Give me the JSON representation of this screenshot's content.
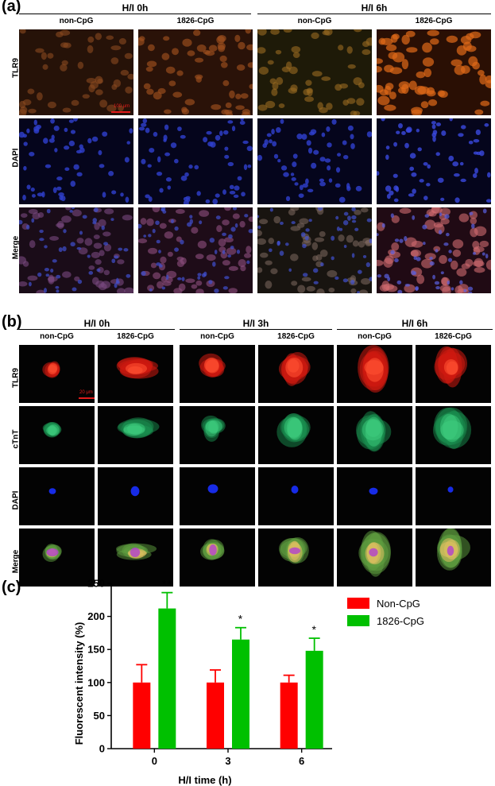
{
  "panel_a": {
    "letter": "(a)",
    "groups": [
      {
        "title": "H/I  0h"
      },
      {
        "title": "H/I  6h"
      }
    ],
    "columns": [
      "non-CpG",
      "1826-CpG",
      "non-CpG",
      "1826-CpG"
    ],
    "rows": [
      "TLR9",
      "DAPI",
      "Merge"
    ],
    "scale_bar": "100 μm"
  },
  "panel_b": {
    "letter": "(b)",
    "groups": [
      {
        "title": "H/I  0h"
      },
      {
        "title": "H/I  3h"
      },
      {
        "title": "H/I  6h"
      }
    ],
    "columns": [
      "non-CpG",
      "1826-CpG",
      "non-CpG",
      "1826-CpG",
      "non-CpG",
      "1826-CpG"
    ],
    "rows": [
      "TLR9",
      "cTnT",
      "DAPI",
      "Merge"
    ],
    "scale_bar": "20 μm"
  },
  "panel_c": {
    "letter": "(c)",
    "chart_data": {
      "type": "bar",
      "categories": [
        "0",
        "3",
        "6"
      ],
      "series": [
        {
          "name": "Non-CpG",
          "values": [
            100,
            100,
            100
          ],
          "errors": [
            27,
            19,
            11
          ],
          "color": "#ff0000"
        },
        {
          "name": "1826-CpG",
          "values": [
            212,
            165,
            148
          ],
          "errors": [
            24,
            18,
            19
          ],
          "color": "#00c000"
        }
      ],
      "significance": [
        "**",
        "*",
        "*"
      ],
      "xlabel": "H/I time (h)",
      "ylabel": "Fluorescent intensity (%)",
      "ylim": [
        0,
        250
      ],
      "yticks": [
        0,
        50,
        100,
        150,
        200,
        250
      ],
      "legend_position": "top-right",
      "grid": false
    }
  }
}
